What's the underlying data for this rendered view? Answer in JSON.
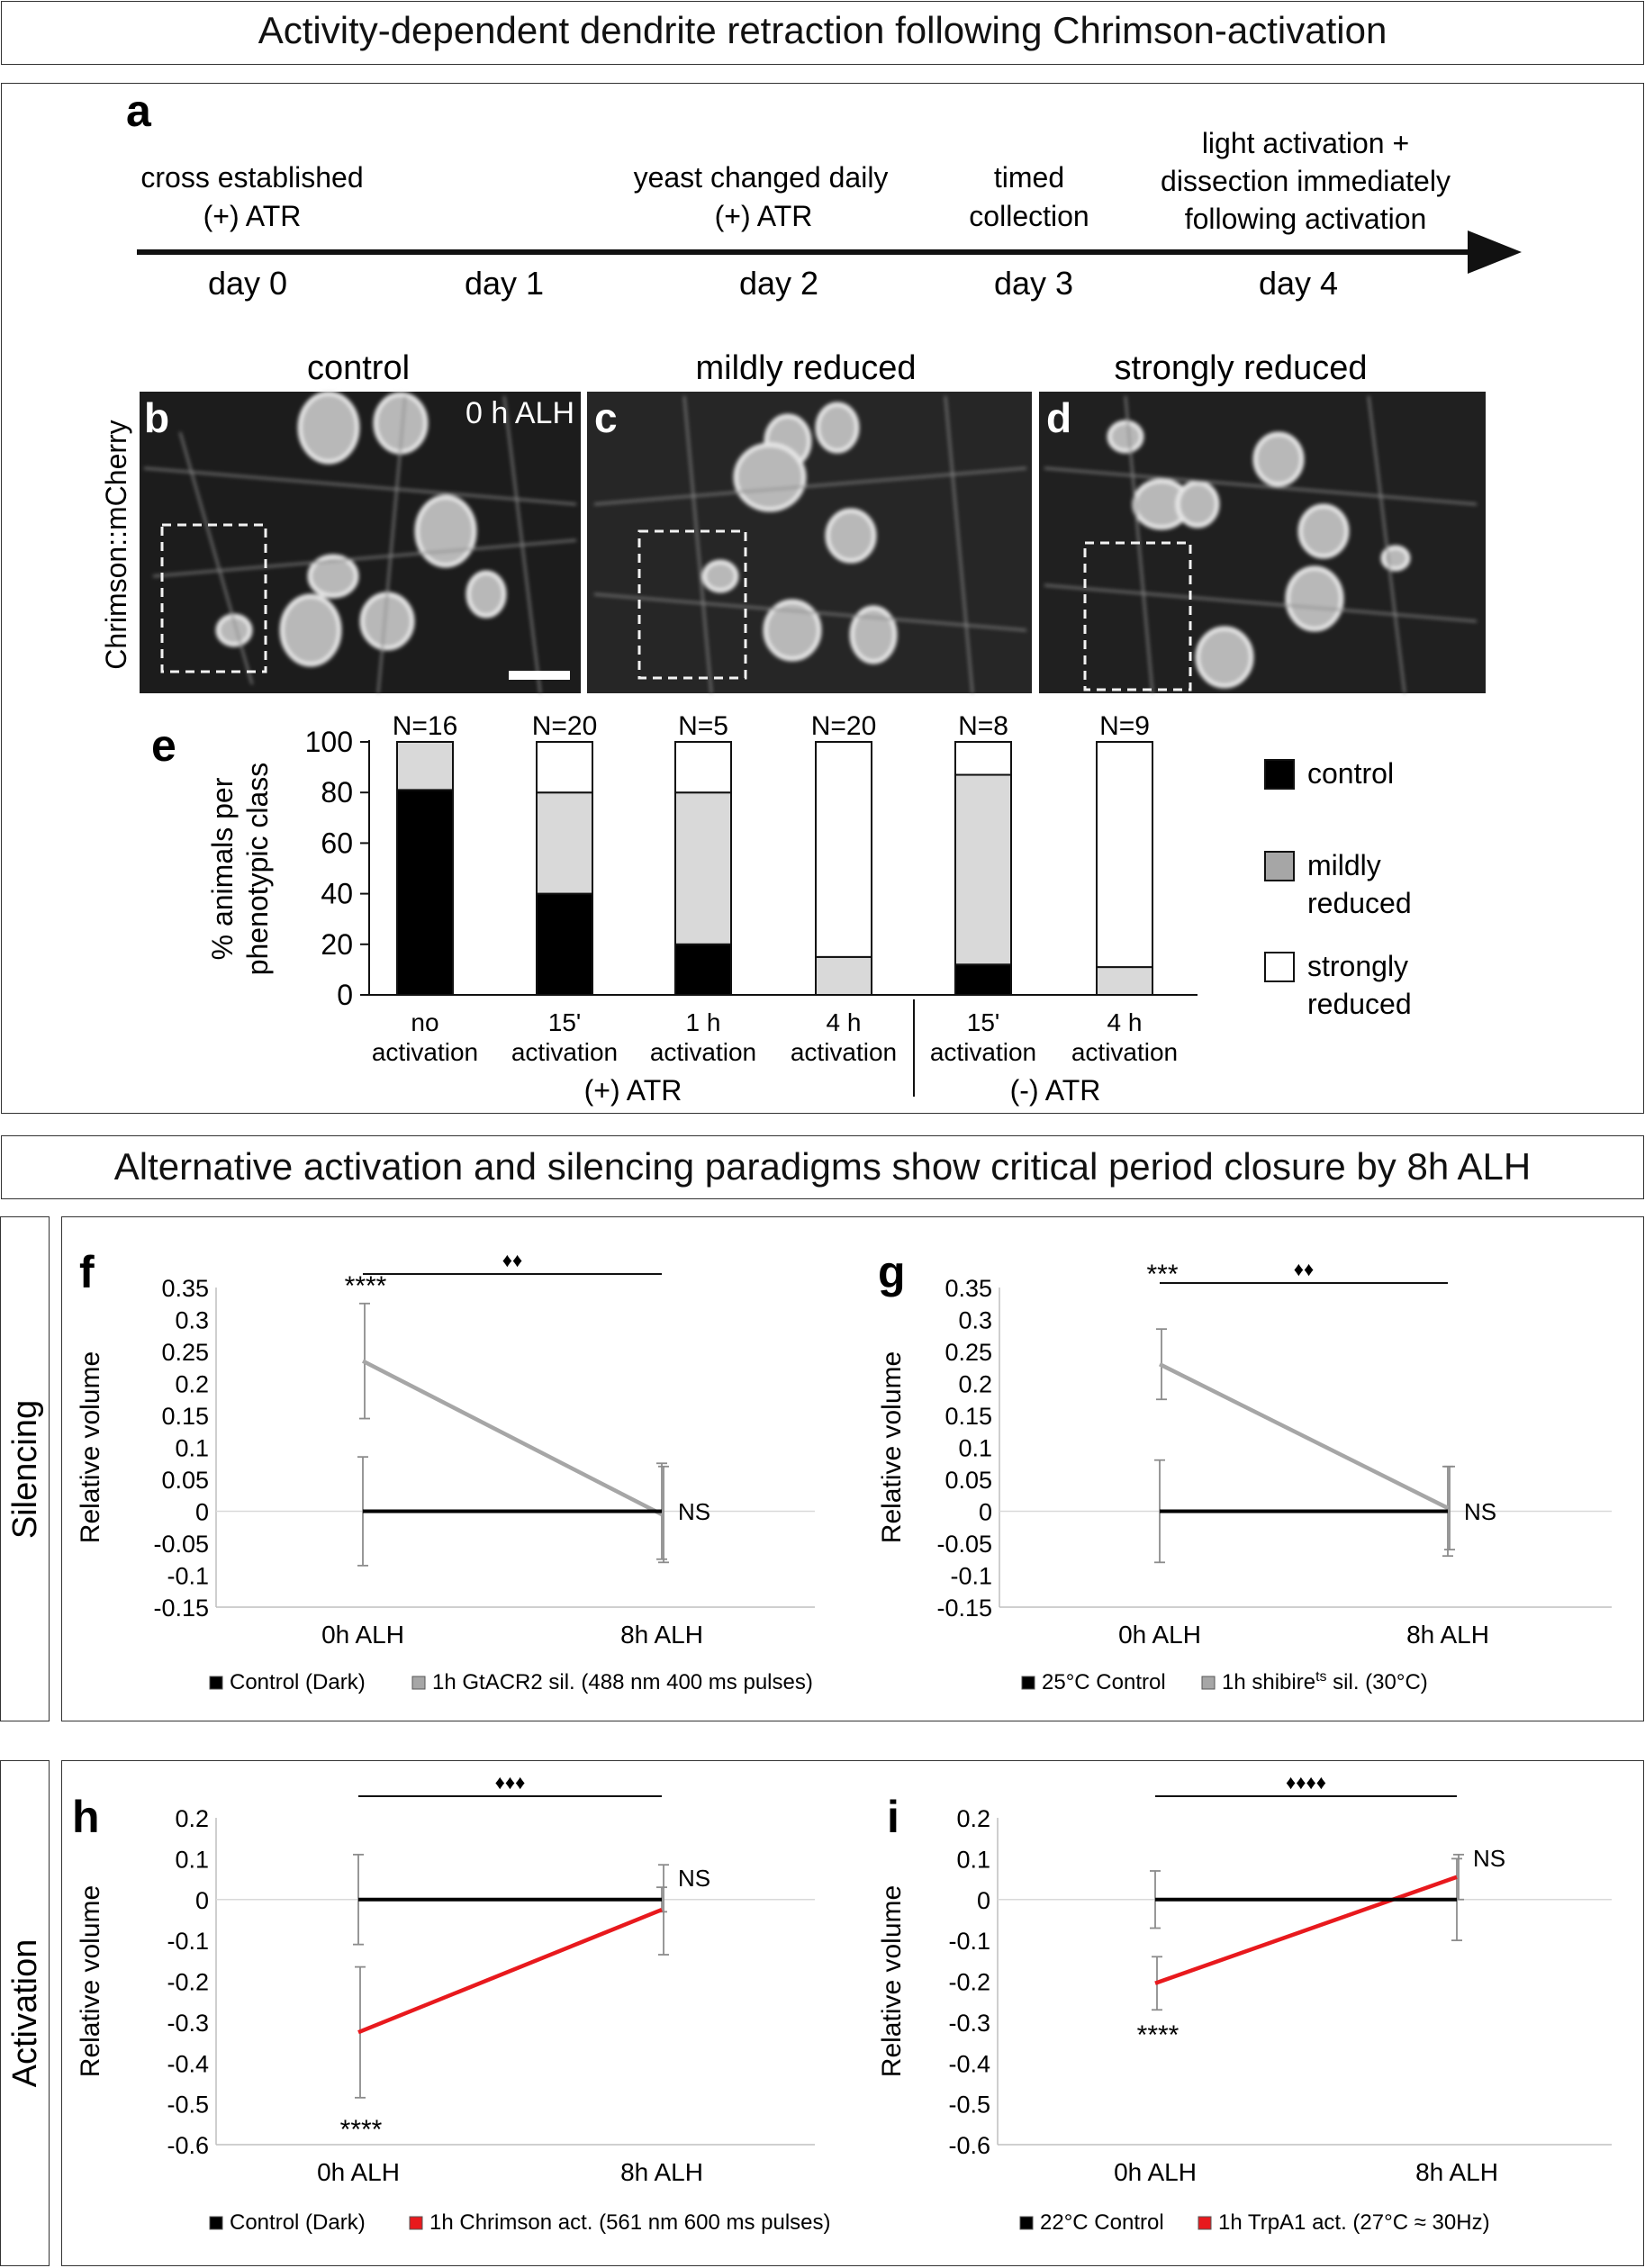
{
  "header_title": "Activity-dependent dendrite retraction following Chrimson-activation",
  "section2_title": "Alternative activation and silencing paradigms show critical period closure by 8h ALH",
  "side_labels": {
    "silencing": "Silencing",
    "activation": "Activation"
  },
  "timeline": {
    "panel_letter": "a",
    "days": [
      "day 0",
      "day 1",
      "day 2",
      "day 3",
      "day 4"
    ],
    "events": [
      {
        "lines": [
          "cross established",
          "(+) ATR"
        ]
      },
      {
        "lines": [
          "yeast changed daily",
          "(+) ATR"
        ]
      },
      {
        "lines": [
          "timed",
          "collection"
        ]
      },
      {
        "lines": [
          "light activation +",
          "dissection immediately",
          "following activation"
        ]
      }
    ]
  },
  "micrographs": {
    "stain_label": "Chrimson::mCherry",
    "time_label": "0 h ALH",
    "panels": [
      {
        "letter": "b",
        "title": "control"
      },
      {
        "letter": "c",
        "title": "mildly reduced"
      },
      {
        "letter": "d",
        "title": "strongly reduced"
      }
    ]
  },
  "chart_data": [
    {
      "panel": "e",
      "type": "bar",
      "stacked": true,
      "ylabel_lines": [
        "% animals per",
        "phenotypic class"
      ],
      "ylim": [
        0,
        100
      ],
      "yticks": [
        0,
        20,
        40,
        60,
        80,
        100
      ],
      "categories": [
        {
          "lines": [
            "no",
            "activation"
          ],
          "n": "N=16"
        },
        {
          "lines": [
            "15'",
            "activation"
          ],
          "n": "N=20"
        },
        {
          "lines": [
            "1 h",
            "activation"
          ],
          "n": "N=5"
        },
        {
          "lines": [
            "4 h",
            "activation"
          ],
          "n": "N=20"
        },
        {
          "lines": [
            "15'",
            "activation"
          ],
          "n": "N=8"
        },
        {
          "lines": [
            "4 h",
            "activation"
          ],
          "n": "N=9"
        }
      ],
      "groups": [
        {
          "label": "(+) ATR"
        },
        {
          "label": "(-) ATR"
        }
      ],
      "series": [
        {
          "name": "control",
          "legend_lines": [
            "control"
          ],
          "color": "#000000",
          "values": [
            81,
            40,
            20,
            0,
            12,
            0
          ]
        },
        {
          "name": "mildly reduced",
          "legend_lines": [
            "mildly",
            "reduced"
          ],
          "color": "#d9d9d9",
          "legend_color": "#a6a6a6",
          "values": [
            19,
            40,
            60,
            15,
            75,
            11
          ]
        },
        {
          "name": "strongly reduced",
          "legend_lines": [
            "strongly",
            "reduced"
          ],
          "color": "#ffffff",
          "values": [
            0,
            20,
            20,
            85,
            13,
            89
          ]
        }
      ]
    },
    {
      "panel": "f",
      "type": "line",
      "ylabel": "Relative volume",
      "categories": [
        "0h ALH",
        "8h ALH"
      ],
      "ylim": [
        -0.15,
        0.35
      ],
      "yticks": [
        "0.35",
        "0.3",
        "0.25",
        "0.2",
        "0.15",
        "0.1",
        "0.05",
        "0",
        "-0.05",
        "-0.1",
        "-0.15"
      ],
      "series": [
        {
          "name": "Control (Dark)",
          "color": "#000000",
          "values": [
            0,
            0
          ],
          "err": [
            0.085,
            0.075
          ]
        },
        {
          "name": "1h GtACR2 sil. (488 nm 400 ms pulses)",
          "color": "#a6a6a6",
          "values": [
            0.235,
            -0.005
          ],
          "err": [
            0.09,
            0.075
          ]
        }
      ],
      "sig_0h": "****",
      "sig_8h": "NS",
      "bracket": "♦♦"
    },
    {
      "panel": "g",
      "type": "line",
      "ylabel": "Relative volume",
      "categories": [
        "0h ALH",
        "8h ALH"
      ],
      "ylim": [
        -0.15,
        0.35
      ],
      "yticks": [
        "0.35",
        "0.3",
        "0.25",
        "0.2",
        "0.15",
        "0.1",
        "0.05",
        "0",
        "-0.05",
        "-0.1",
        "-0.15"
      ],
      "series": [
        {
          "name": "25°C Control",
          "color": "#000000",
          "values": [
            0,
            0
          ],
          "err": [
            0.08,
            0.07
          ]
        },
        {
          "name_main": "1h shibire",
          "name_sup": "ts",
          "name_tail": " sil. (30°C)",
          "color": "#a6a6a6",
          "values": [
            0.23,
            0.005
          ],
          "err": [
            0.055,
            0.065
          ]
        }
      ],
      "sig_0h": "***",
      "sig_8h": "NS",
      "bracket": "♦♦"
    },
    {
      "panel": "h",
      "type": "line",
      "ylabel": "Relative volume",
      "categories": [
        "0h ALH",
        "8h ALH"
      ],
      "ylim": [
        -0.6,
        0.2
      ],
      "yticks": [
        "0.2",
        "0.1",
        "0",
        "-0.1",
        "-0.2",
        "-0.3",
        "-0.4",
        "-0.5",
        "-0.6"
      ],
      "series": [
        {
          "name": "Control (Dark)",
          "color": "#000000",
          "values": [
            0,
            0
          ],
          "err": [
            0.11,
            0.03
          ]
        },
        {
          "name": "1h Chrimson act. (561 nm 600 ms pulses)",
          "color": "#e8191d",
          "values": [
            -0.325,
            -0.025
          ],
          "err": [
            0.16,
            0.11
          ]
        }
      ],
      "sig_0h": "****",
      "sig_8h": "NS",
      "bracket": "♦♦♦"
    },
    {
      "panel": "i",
      "type": "line",
      "ylabel": "Relative volume",
      "categories": [
        "0h ALH",
        "8h ALH"
      ],
      "ylim": [
        -0.6,
        0.2
      ],
      "yticks": [
        "0.2",
        "0.1",
        "0",
        "-0.1",
        "-0.2",
        "-0.3",
        "-0.4",
        "-0.5",
        "-0.6"
      ],
      "series": [
        {
          "name": "22°C Control",
          "color": "#000000",
          "values": [
            0,
            0
          ],
          "err": [
            0.07,
            0.1
          ]
        },
        {
          "name": "1h TrpA1 act. (27°C ≈ 30Hz)",
          "color": "#e8191d",
          "values": [
            -0.205,
            0.055
          ],
          "err": [
            0.065,
            0.055
          ]
        }
      ],
      "sig_0h": "****",
      "sig_8h": "NS",
      "bracket": "♦♦♦♦"
    }
  ]
}
